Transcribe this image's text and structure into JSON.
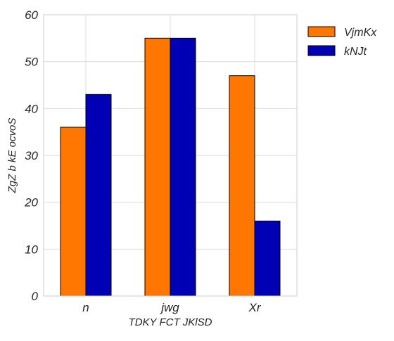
{
  "chart_data": {
    "type": "bar",
    "categories": [
      "n",
      "jwg",
      "Xr"
    ],
    "series": [
      {
        "name": "VjmKx",
        "values": [
          36,
          55,
          47
        ],
        "color": "#ff7700"
      },
      {
        "name": "kNJt",
        "values": [
          43,
          55,
          16
        ],
        "color": "#0000b4"
      }
    ],
    "xlabel": "TDKY FCT JKlSD",
    "ylabel": "ZgZ b kE ocvoS",
    "ylim": [
      0,
      60
    ],
    "yticks": [
      0,
      10,
      20,
      30,
      40,
      50,
      60
    ],
    "grid": true,
    "legend_position": "top-right-outside"
  },
  "colors": {
    "grid": "#dcdcdc",
    "frame": "#cccccc",
    "bar_edge": "#000000"
  }
}
